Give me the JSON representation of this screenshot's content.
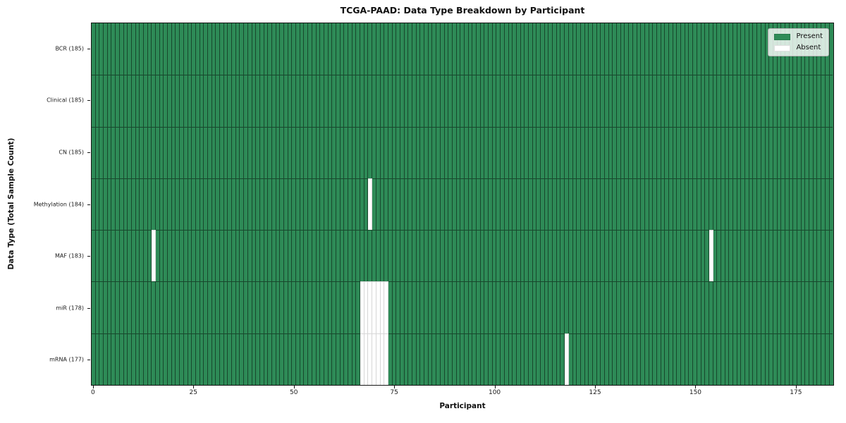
{
  "title": "TCGA-PAAD: Data Type Breakdown by Participant",
  "chart_data": {
    "type": "heatmap",
    "title": "TCGA-PAAD: Data Type Breakdown by Participant",
    "xlabel": "Participant",
    "ylabel": "Data Type (Total Sample Count)",
    "n_participants": 185,
    "xlim": [
      -0.5,
      184.5
    ],
    "xticks": [
      0,
      25,
      50,
      75,
      100,
      125,
      150,
      175
    ],
    "grid": false,
    "colors": {
      "present": "#2e8b57",
      "absent": "#ffffff"
    },
    "legend": {
      "position": "upper right",
      "entries": [
        {
          "label": "Present",
          "color": "#2e8b57"
        },
        {
          "label": "Absent",
          "color": "#ffffff"
        }
      ]
    },
    "rows": [
      {
        "label": "BCR (185)",
        "data_type": "BCR",
        "present_count": 185,
        "absent_count": 0,
        "absent_participants": []
      },
      {
        "label": "Clinical (185)",
        "data_type": "Clinical",
        "present_count": 185,
        "absent_count": 0,
        "absent_participants": []
      },
      {
        "label": "CN (185)",
        "data_type": "CN",
        "present_count": 185,
        "absent_count": 0,
        "absent_participants": []
      },
      {
        "label": "Methylation (184)",
        "data_type": "Methylation",
        "present_count": 184,
        "absent_count": 1,
        "absent_participants": [
          69
        ]
      },
      {
        "label": "MAF (183)",
        "data_type": "MAF",
        "present_count": 183,
        "absent_count": 2,
        "absent_participants": [
          15,
          154
        ]
      },
      {
        "label": "miR (178)",
        "data_type": "miR",
        "present_count": 178,
        "absent_count": 7,
        "absent_participants": [
          67,
          68,
          69,
          70,
          71,
          72,
          73
        ]
      },
      {
        "label": "mRNA (177)",
        "data_type": "mRNA",
        "present_count": 177,
        "absent_count": 8,
        "absent_participants": [
          67,
          68,
          69,
          70,
          71,
          72,
          73,
          118
        ]
      }
    ]
  }
}
